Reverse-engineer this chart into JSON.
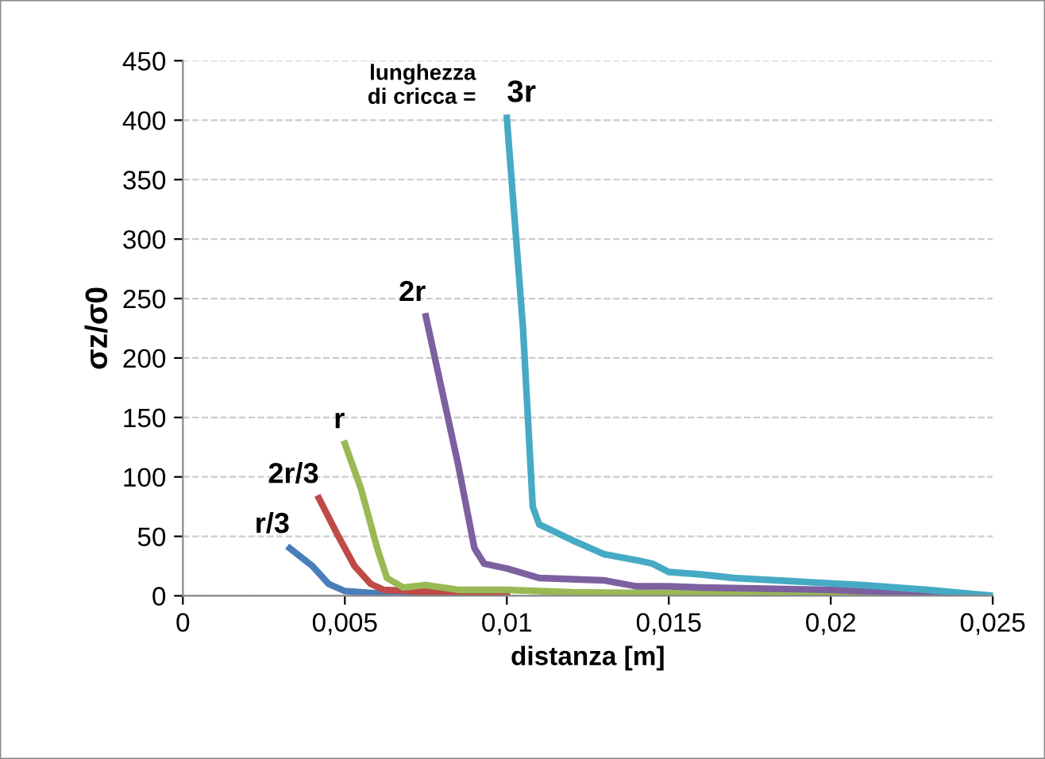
{
  "chart_data": {
    "type": "line",
    "xlabel": "distanza [m]",
    "ylabel": "σz/σ0",
    "xlim": [
      0,
      0.025
    ],
    "xticks": [
      {
        "value": 0,
        "label": "0"
      },
      {
        "value": 0.005,
        "label": "0,005"
      },
      {
        "value": 0.01,
        "label": "0,01"
      },
      {
        "value": 0.015,
        "label": "0,015"
      },
      {
        "value": 0.02,
        "label": "0,02"
      },
      {
        "value": 0.025,
        "label": "0,025"
      }
    ],
    "ylim": [
      0,
      450
    ],
    "yticks": [
      0,
      50,
      100,
      150,
      200,
      250,
      300,
      350,
      400,
      450
    ],
    "grid": "y",
    "legend": false,
    "marker": "none",
    "line_style": "solid",
    "annotations": [
      "lunghezza\ndi cricca ="
    ],
    "series": [
      {
        "name": "r/3",
        "color": "#4a7ebb",
        "x": [
          0.0033,
          0.004,
          0.0045,
          0.005,
          0.006,
          0.008
        ],
        "values": [
          40,
          25,
          10,
          4,
          2,
          1
        ]
      },
      {
        "name": "2r/3",
        "color": "#be4b48",
        "x": [
          0.0042,
          0.0048,
          0.0053,
          0.0058,
          0.0062,
          0.007,
          0.008,
          0.01
        ],
        "values": [
          82,
          50,
          25,
          10,
          5,
          4,
          3,
          1
        ]
      },
      {
        "name": "r",
        "color": "#98b954",
        "x": [
          0.005,
          0.0055,
          0.006,
          0.0063,
          0.0068,
          0.0075,
          0.0085,
          0.01,
          0.012,
          0.02,
          0.025
        ],
        "values": [
          128,
          90,
          40,
          15,
          7,
          9,
          5,
          5,
          3,
          1,
          0
        ]
      },
      {
        "name": "2r",
        "color": "#7d60a0",
        "x": [
          0.0075,
          0.0085,
          0.009,
          0.0093,
          0.01,
          0.011,
          0.012,
          0.013,
          0.014,
          0.015,
          0.016,
          0.02,
          0.025
        ],
        "values": [
          235,
          110,
          40,
          27,
          23,
          15,
          14,
          13,
          8,
          8,
          7,
          5,
          0
        ]
      },
      {
        "name": "3r",
        "color": "#46aac5",
        "x": [
          0.01,
          0.0105,
          0.0108,
          0.011,
          0.012,
          0.013,
          0.014,
          0.0145,
          0.015,
          0.016,
          0.017,
          0.019,
          0.021,
          0.023,
          0.025
        ],
        "values": [
          402,
          225,
          75,
          60,
          47,
          35,
          30,
          27,
          20,
          18,
          15,
          12,
          9,
          5,
          0
        ]
      }
    ]
  }
}
